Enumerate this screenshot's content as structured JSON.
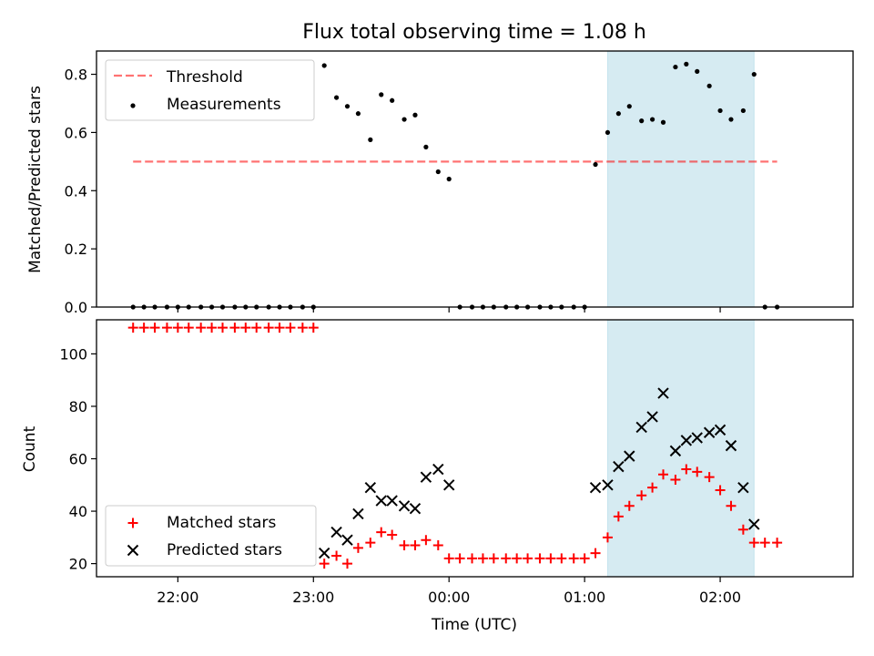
{
  "chart_data": [
    {
      "type": "scatter",
      "title": "Flux total observing time = 1.08 h",
      "xlabel": "",
      "ylabel": "Matched/Predicted stars",
      "ylim": [
        0,
        0.88
      ],
      "yticks": [
        0,
        0.2,
        0.4,
        0.6,
        0.8
      ],
      "ytick_labels": [
        "0.0",
        "0.2",
        "0.4",
        "0.6",
        "0.8"
      ],
      "xlim_hours": [
        21.4,
        26.98
      ],
      "xticks_hours": [
        22,
        23,
        24,
        25,
        26
      ],
      "xtick_labels": [],
      "shaded_interval_hours": [
        25.17,
        26.25
      ],
      "shade_color": "#add8e6",
      "legend_position": "upper left",
      "threshold": {
        "name": "Threshold",
        "value": 0.5,
        "x_range_hours": [
          21.67,
          26.42
        ],
        "color": "#ff0000",
        "style": "dashed"
      },
      "series": [
        {
          "name": "Measurements",
          "color": "#000000",
          "marker": "dot",
          "x_hours": [
            21.67,
            21.75,
            21.83,
            21.92,
            22.0,
            22.08,
            22.17,
            22.25,
            22.33,
            22.42,
            22.5,
            22.58,
            22.67,
            22.75,
            22.83,
            22.92,
            23.0,
            23.08,
            23.17,
            23.25,
            23.33,
            23.42,
            23.5,
            23.58,
            23.67,
            23.75,
            23.83,
            23.92,
            24.0,
            24.08,
            24.17,
            24.25,
            24.33,
            24.42,
            24.5,
            24.58,
            24.67,
            24.75,
            24.83,
            24.92,
            25.0,
            25.08,
            25.17,
            25.25,
            25.33,
            25.42,
            25.5,
            25.58,
            25.67,
            25.75,
            25.83,
            25.92,
            26.0,
            26.08,
            26.17,
            26.25,
            26.33,
            26.42
          ],
          "y": [
            0.0,
            0.0,
            0.0,
            0.0,
            0.0,
            0.0,
            0.0,
            0.0,
            0.0,
            0.0,
            0.0,
            0.0,
            0.0,
            0.0,
            0.0,
            0.0,
            0.0,
            0.83,
            0.72,
            0.69,
            0.665,
            0.575,
            0.73,
            0.71,
            0.645,
            0.66,
            0.55,
            0.465,
            0.44,
            0.0,
            0.0,
            0.0,
            0.0,
            0.0,
            0.0,
            0.0,
            0.0,
            0.0,
            0.0,
            0.0,
            0.0,
            0.49,
            0.6,
            0.665,
            0.69,
            0.64,
            0.645,
            0.635,
            0.825,
            0.835,
            0.81,
            0.76,
            0.675,
            0.645,
            0.675,
            0.8,
            0.0,
            0.0
          ]
        }
      ]
    },
    {
      "type": "scatter",
      "title": "",
      "xlabel": "Time (UTC)",
      "ylabel": "Count",
      "ylim": [
        15,
        113
      ],
      "yticks": [
        20,
        40,
        60,
        80,
        100
      ],
      "ytick_labels": [
        "20",
        "40",
        "60",
        "80",
        "100"
      ],
      "xlim_hours": [
        21.4,
        26.98
      ],
      "xticks_hours": [
        22,
        23,
        24,
        25,
        26
      ],
      "xtick_labels": [
        "22:00",
        "23:00",
        "00:00",
        "01:00",
        "02:00"
      ],
      "shaded_interval_hours": [
        25.17,
        26.25
      ],
      "shade_color": "#add8e6",
      "legend_position": "lower left",
      "series": [
        {
          "name": "Matched stars",
          "color": "#ff0000",
          "marker": "plus",
          "x_hours": [
            21.67,
            21.75,
            21.83,
            21.92,
            22.0,
            22.08,
            22.17,
            22.25,
            22.33,
            22.42,
            22.5,
            22.58,
            22.67,
            22.75,
            22.83,
            22.92,
            23.0,
            23.08,
            23.17,
            23.25,
            23.33,
            23.42,
            23.5,
            23.58,
            23.67,
            23.75,
            23.83,
            23.92,
            24.0,
            24.08,
            24.17,
            24.25,
            24.33,
            24.42,
            24.5,
            24.58,
            24.67,
            24.75,
            24.83,
            24.92,
            25.0,
            25.08,
            25.17,
            25.25,
            25.33,
            25.42,
            25.5,
            25.58,
            25.67,
            25.75,
            25.83,
            25.92,
            26.0,
            26.08,
            26.17,
            26.25,
            26.33,
            26.42
          ],
          "y": [
            110,
            110,
            110,
            110,
            110,
            110,
            110,
            110,
            110,
            110,
            110,
            110,
            110,
            110,
            110,
            110,
            110,
            20,
            23,
            20,
            26,
            28,
            32,
            31,
            27,
            27,
            29,
            27,
            22,
            22,
            22,
            22,
            22,
            22,
            22,
            22,
            22,
            22,
            22,
            22,
            22,
            24,
            30,
            38,
            42,
            46,
            49,
            54,
            52,
            56,
            55,
            53,
            48,
            42,
            33,
            28,
            28,
            28
          ]
        },
        {
          "name": "Predicted stars",
          "color": "#000000",
          "marker": "x",
          "x_hours": [
            23.08,
            23.17,
            23.25,
            23.33,
            23.42,
            23.5,
            23.58,
            23.67,
            23.75,
            23.83,
            23.92,
            24.0,
            25.08,
            25.17,
            25.25,
            25.33,
            25.42,
            25.5,
            25.58,
            25.67,
            25.75,
            25.83,
            25.92,
            26.0,
            26.08,
            26.17,
            26.25
          ],
          "y": [
            24,
            32,
            29,
            39,
            49,
            44,
            44,
            42,
            41,
            53,
            56,
            50,
            49,
            50,
            57,
            61,
            72,
            76,
            85,
            63,
            67,
            68,
            70,
            71,
            65,
            49,
            35
          ]
        }
      ]
    }
  ]
}
